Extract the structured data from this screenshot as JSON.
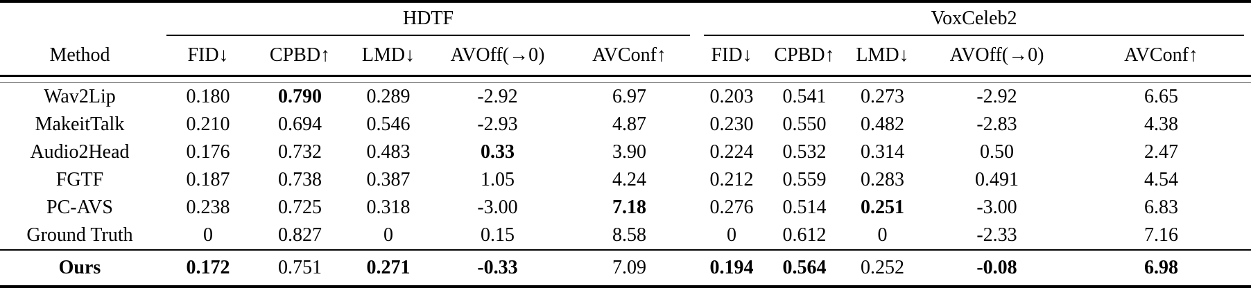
{
  "colors": {
    "text": "#000000",
    "background": "#ffffff",
    "rule": "#000000"
  },
  "table": {
    "method_header": "Method",
    "col_groups": [
      {
        "label": "HDTF"
      },
      {
        "label": "VoxCeleb2"
      }
    ],
    "metric_headers": [
      "FID↓",
      "CPBD↑",
      "LMD↓",
      "AVOff(→0)",
      "AVConf↑"
    ],
    "rows": [
      {
        "method": "Wav2Lip",
        "bold_method": false,
        "emphasis_row": false,
        "values": [
          "0.180",
          "0.790",
          "0.289",
          "-2.92",
          "6.97",
          "0.203",
          "0.541",
          "0.273",
          "-2.92",
          "6.65"
        ],
        "bold": [
          0,
          1,
          0,
          0,
          0,
          0,
          0,
          0,
          0,
          0
        ]
      },
      {
        "method": "MakeitTalk",
        "bold_method": false,
        "emphasis_row": false,
        "values": [
          "0.210",
          "0.694",
          "0.546",
          "-2.93",
          "4.87",
          "0.230",
          "0.550",
          "0.482",
          "-2.83",
          "4.38"
        ],
        "bold": [
          0,
          0,
          0,
          0,
          0,
          0,
          0,
          0,
          0,
          0
        ]
      },
      {
        "method": "Audio2Head",
        "bold_method": false,
        "emphasis_row": false,
        "values": [
          "0.176",
          "0.732",
          "0.483",
          "0.33",
          "3.90",
          "0.224",
          "0.532",
          "0.314",
          "0.50",
          "2.47"
        ],
        "bold": [
          0,
          0,
          0,
          1,
          0,
          0,
          0,
          0,
          0,
          0
        ]
      },
      {
        "method": "FGTF",
        "bold_method": false,
        "emphasis_row": false,
        "values": [
          "0.187",
          "0.738",
          "0.387",
          "1.05",
          "4.24",
          "0.212",
          "0.559",
          "0.283",
          "0.491",
          "4.54"
        ],
        "bold": [
          0,
          0,
          0,
          0,
          0,
          0,
          0,
          0,
          0,
          0
        ]
      },
      {
        "method": "PC-AVS",
        "bold_method": false,
        "emphasis_row": false,
        "values": [
          "0.238",
          "0.725",
          "0.318",
          "-3.00",
          "7.18",
          "0.276",
          "0.514",
          "0.251",
          "-3.00",
          "6.83"
        ],
        "bold": [
          0,
          0,
          0,
          0,
          1,
          0,
          0,
          1,
          0,
          0
        ]
      },
      {
        "method": "Ground Truth",
        "bold_method": false,
        "emphasis_row": false,
        "values": [
          "0",
          "0.827",
          "0",
          "0.15",
          "8.58",
          "0",
          "0.612",
          "0",
          "-2.33",
          "7.16"
        ],
        "bold": [
          0,
          0,
          0,
          0,
          0,
          0,
          0,
          0,
          0,
          0
        ]
      },
      {
        "method": "Ours",
        "bold_method": true,
        "emphasis_row": true,
        "values": [
          "0.172",
          "0.751",
          "0.271",
          "-0.33",
          "7.09",
          "0.194",
          "0.564",
          "0.252",
          "-0.08",
          "6.98"
        ],
        "bold": [
          1,
          0,
          1,
          1,
          0,
          1,
          1,
          0,
          1,
          1
        ]
      }
    ]
  }
}
